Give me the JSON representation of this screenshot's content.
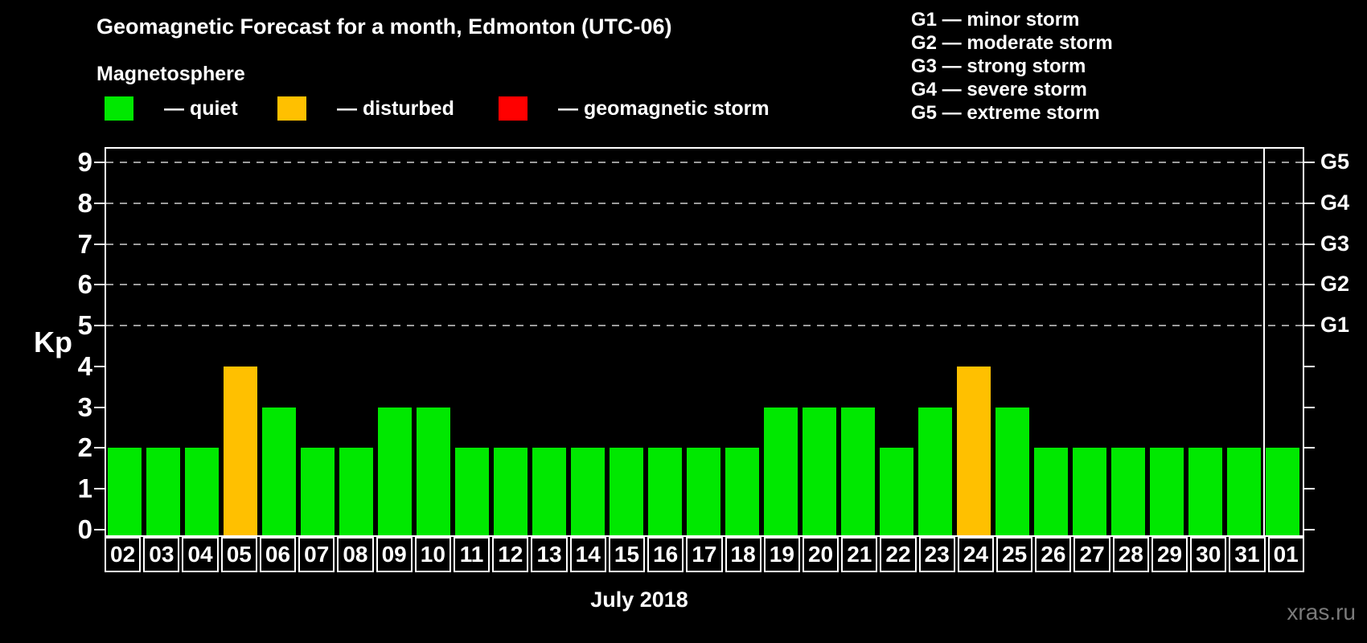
{
  "page": {
    "background": "#000000",
    "watermark": "xras.ru"
  },
  "header": {
    "title": "Geomagnetic Forecast for a month, Edmonton (UTC-06)",
    "subtitle": "Magnetosphere"
  },
  "legend": {
    "items": [
      {
        "name": "quiet",
        "label": "— quiet",
        "color": "#00E800"
      },
      {
        "name": "disturbed",
        "label": "— disturbed",
        "color": "#FFC000"
      },
      {
        "name": "storm",
        "label": "— geomagnetic storm",
        "color": "#FF0000"
      }
    ]
  },
  "g_legend": {
    "items": [
      "G1 — minor storm",
      "G2 — moderate storm",
      "G3 — strong storm",
      "G4 — severe storm",
      "G5 — extreme storm"
    ]
  },
  "chart_data": {
    "type": "bar",
    "title": "Geomagnetic Forecast for a month, Edmonton (UTC-06)",
    "subtitle": "Magnetosphere",
    "xlabel": "July 2018",
    "ylabel": "Kp",
    "ylim": [
      0,
      9
    ],
    "y_ticks": [
      0,
      1,
      2,
      3,
      4,
      5,
      6,
      7,
      8,
      9
    ],
    "grid": "dashed horizontal gridlines at Kp 5-9 (G1-G5 levels)",
    "legend_position": "top",
    "categories": [
      "02",
      "03",
      "04",
      "05",
      "06",
      "07",
      "08",
      "09",
      "10",
      "11",
      "12",
      "13",
      "14",
      "15",
      "16",
      "17",
      "18",
      "19",
      "20",
      "21",
      "22",
      "23",
      "24",
      "25",
      "26",
      "27",
      "28",
      "29",
      "30",
      "31",
      "01"
    ],
    "values": [
      2,
      2,
      2,
      4,
      3,
      2,
      2,
      3,
      3,
      2,
      2,
      2,
      2,
      2,
      2,
      2,
      2,
      3,
      3,
      3,
      2,
      3,
      4,
      3,
      2,
      2,
      2,
      2,
      2,
      2,
      2
    ],
    "month_separator_after_index": 29,
    "g_scale": [
      {
        "label": "G1",
        "kp": 5
      },
      {
        "label": "G2",
        "kp": 6
      },
      {
        "label": "G3",
        "kp": 7
      },
      {
        "label": "G4",
        "kp": 8
      },
      {
        "label": "G5",
        "kp": 9
      }
    ],
    "color_rules": {
      "quiet_kp_max": 3,
      "disturbed_kp": 4,
      "storm_kp_min": 5
    },
    "colors": {
      "quiet": "#00E800",
      "disturbed": "#FFC000",
      "storm": "#FF0000"
    }
  }
}
